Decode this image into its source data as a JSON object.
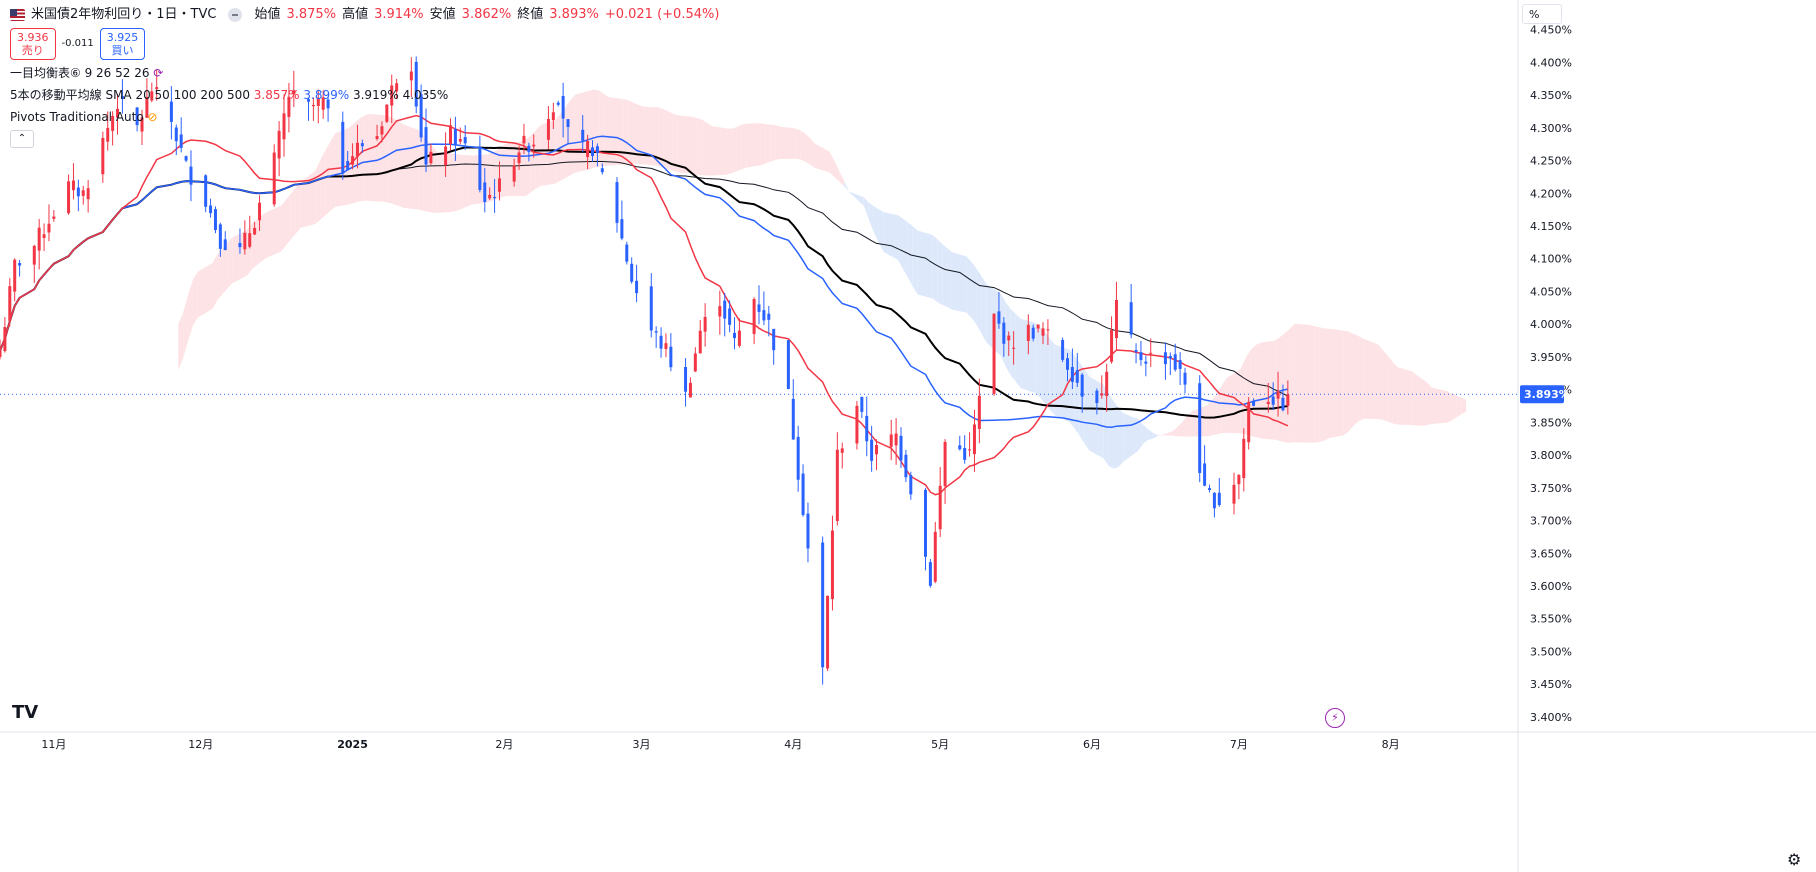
{
  "header": {
    "symbol_title": "米国債2年物利回り・1日・TVC",
    "open_label": "始値",
    "open": "3.875%",
    "high_label": "高値",
    "high": "3.914%",
    "low_label": "安値",
    "low": "3.862%",
    "close_label": "終値",
    "close": "3.893%",
    "change": "+0.021 (+0.54%)",
    "sell_price": "3.936",
    "sell_label": "売り",
    "spread": "-0.011",
    "buy_price": "3.925",
    "buy_label": "買い"
  },
  "indicators": {
    "ichimoku": "一目均衡表⑥ 9 26 52 26",
    "sma_label": "5本の移動平均線 SMA 20 50 100 200 500",
    "sma20": "3.857%",
    "sma50": "3.899%",
    "sma100": "3.919%",
    "sma200": "4.035%",
    "pivots": "Pivots Traditional Auto"
  },
  "price_scale": {
    "unit": "%",
    "current_price": "3.893%"
  },
  "colors": {
    "up": "#f23645",
    "down": "#2962ff",
    "sma20": "#f23645",
    "sma50": "#2962ff",
    "sma100": "#000000",
    "sma200": "#131722",
    "cloud_bull": "#fde3e5",
    "cloud_bear": "#dde9fb"
  },
  "chart_data": {
    "type": "candlestick",
    "ylim": [
      3.38,
      4.48
    ],
    "yticks": [
      "3.400%",
      "3.450%",
      "3.500%",
      "3.550%",
      "3.600%",
      "3.650%",
      "3.700%",
      "3.750%",
      "3.800%",
      "3.850%",
      "3.900%",
      "3.950%",
      "4.000%",
      "4.050%",
      "4.100%",
      "4.150%",
      "4.200%",
      "4.250%",
      "4.300%",
      "4.350%",
      "4.400%",
      "4.450%"
    ],
    "x_start": "2024-10-21",
    "x_end": "2025-08-27",
    "month_ticks": [
      {
        "label": "11月",
        "date": "2024-11-01"
      },
      {
        "label": "12月",
        "date": "2024-12-01"
      },
      {
        "label": "2025",
        "date": "2025-01-01"
      },
      {
        "label": "2月",
        "date": "2025-02-01"
      },
      {
        "label": "3月",
        "date": "2025-03-01"
      },
      {
        "label": "4月",
        "date": "2025-04-01"
      },
      {
        "label": "5月",
        "date": "2025-05-01"
      },
      {
        "label": "6月",
        "date": "2025-06-01"
      },
      {
        "label": "7月",
        "date": "2025-07-01"
      },
      {
        "label": "8月",
        "date": "2025-08-01"
      }
    ],
    "close_series": [
      [
        "2024-10-21",
        3.96
      ],
      [
        "2024-10-24",
        4.09
      ],
      [
        "2024-10-28",
        4.12
      ],
      [
        "2024-10-31",
        4.16
      ],
      [
        "2024-11-04",
        4.21
      ],
      [
        "2024-11-07",
        4.2
      ],
      [
        "2024-11-11",
        4.28
      ],
      [
        "2024-11-14",
        4.34
      ],
      [
        "2024-11-18",
        4.3
      ],
      [
        "2024-11-21",
        4.36
      ],
      [
        "2024-11-25",
        4.31
      ],
      [
        "2024-11-28",
        4.24
      ],
      [
        "2024-12-02",
        4.19
      ],
      [
        "2024-12-05",
        4.13
      ],
      [
        "2024-12-09",
        4.11
      ],
      [
        "2024-12-12",
        4.16
      ],
      [
        "2024-12-16",
        4.25
      ],
      [
        "2024-12-19",
        4.35
      ],
      [
        "2024-12-23",
        4.33
      ],
      [
        "2024-12-26",
        4.34
      ],
      [
        "2024-12-30",
        4.24
      ],
      [
        "2025-01-02",
        4.27
      ],
      [
        "2025-01-06",
        4.29
      ],
      [
        "2025-01-10",
        4.38
      ],
      [
        "2025-01-13",
        4.4
      ],
      [
        "2025-01-16",
        4.24
      ],
      [
        "2025-01-21",
        4.29
      ],
      [
        "2025-01-24",
        4.27
      ],
      [
        "2025-01-28",
        4.19
      ],
      [
        "2025-01-31",
        4.21
      ],
      [
        "2025-02-04",
        4.27
      ],
      [
        "2025-02-07",
        4.28
      ],
      [
        "2025-02-12",
        4.35
      ],
      [
        "2025-02-15",
        4.26
      ],
      [
        "2025-02-19",
        4.27
      ],
      [
        "2025-02-24",
        4.16
      ],
      [
        "2025-02-27",
        4.07
      ],
      [
        "2025-03-03",
        3.99
      ],
      [
        "2025-03-06",
        3.96
      ],
      [
        "2025-03-10",
        3.89
      ],
      [
        "2025-03-13",
        3.99
      ],
      [
        "2025-03-17",
        4.04
      ],
      [
        "2025-03-20",
        3.97
      ],
      [
        "2025-03-24",
        4.04
      ],
      [
        "2025-03-27",
        4.0
      ],
      [
        "2025-03-31",
        3.89
      ],
      [
        "2025-04-03",
        3.72
      ],
      [
        "2025-04-07",
        3.47
      ],
      [
        "2025-04-10",
        3.8
      ],
      [
        "2025-04-14",
        3.88
      ],
      [
        "2025-04-17",
        3.8
      ],
      [
        "2025-04-22",
        3.83
      ],
      [
        "2025-04-25",
        3.75
      ],
      [
        "2025-04-29",
        3.61
      ],
      [
        "2025-05-02",
        3.82
      ],
      [
        "2025-05-07",
        3.8
      ],
      [
        "2025-05-12",
        4.01
      ],
      [
        "2025-05-15",
        3.97
      ],
      [
        "2025-05-19",
        3.99
      ],
      [
        "2025-05-22",
        3.99
      ],
      [
        "2025-05-27",
        3.94
      ],
      [
        "2025-05-30",
        3.9
      ],
      [
        "2025-06-03",
        3.89
      ],
      [
        "2025-06-06",
        4.03
      ],
      [
        "2025-06-10",
        3.95
      ],
      [
        "2025-06-13",
        3.95
      ],
      [
        "2025-06-17",
        3.95
      ],
      [
        "2025-06-20",
        3.91
      ],
      [
        "2025-06-24",
        3.74
      ],
      [
        "2025-06-27",
        3.73
      ],
      [
        "2025-07-01",
        3.77
      ],
      [
        "2025-07-03",
        3.88
      ],
      [
        "2025-07-07",
        3.89
      ],
      [
        "2025-07-10",
        3.88
      ],
      [
        "2025-07-11",
        3.893
      ]
    ]
  }
}
